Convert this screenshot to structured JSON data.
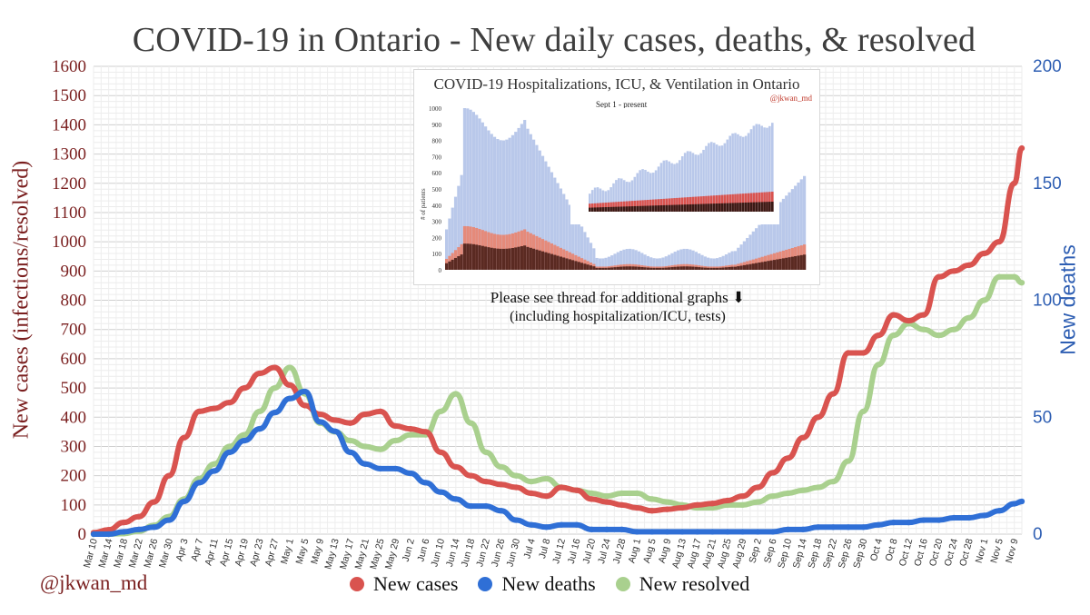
{
  "title": "COVID-19 in Ontario - New daily cases, deaths, & resolved",
  "handle": "@jkwan_md",
  "legend": [
    {
      "label": "New cases",
      "color": "#d9534f"
    },
    {
      "label": "New deaths",
      "color": "#2f6fd6"
    },
    {
      "label": "New resolved",
      "color": "#a9d08e"
    }
  ],
  "inset": {
    "title": "COVID-19 Hospitalizations, ICU, & Ventilation in Ontario",
    "handle": "@jkwan_md",
    "subtitle": "Sept 1 - present",
    "ylabel": "# of patients",
    "y_ticks": [
      "1000",
      "900",
      "800",
      "700",
      "600",
      "500",
      "400",
      "300",
      "200",
      "100",
      "0"
    ]
  },
  "note": {
    "line1": "Please see thread for additional graphs ⬇",
    "line2": "(including hospitalization/ICU, tests)"
  },
  "chart_data": {
    "type": "line",
    "title": "COVID-19 in Ontario - New daily cases, deaths, & resolved",
    "ylabel": "New cases (infections/resolved)",
    "y2label": "New deaths",
    "ylim": [
      0,
      1600
    ],
    "y2lim": [
      0,
      200
    ],
    "y_ticks": [
      0,
      100,
      200,
      300,
      400,
      500,
      600,
      700,
      800,
      900,
      1000,
      1100,
      1200,
      1300,
      1400,
      1500,
      1600
    ],
    "y2_ticks": [
      0,
      50,
      100,
      150,
      200
    ],
    "x_tick_labels": [
      "Mar 10",
      "Mar 14",
      "Mar 18",
      "Mar 22",
      "Mar 26",
      "Mar 30",
      "Apr 3",
      "Apr 7",
      "Apr 11",
      "Apr 15",
      "Apr 19",
      "Apr 23",
      "Apr 27",
      "May 1",
      "May 5",
      "May 9",
      "May 13",
      "May 17",
      "May 21",
      "May 25",
      "May 29",
      "Jun 2",
      "Jun 6",
      "Jun 10",
      "Jun 14",
      "Jun 18",
      "Jun 22",
      "Jun 26",
      "Jun 30",
      "Jul 4",
      "Jul 8",
      "Jul 12",
      "Jul 16",
      "Jul 20",
      "Jul 24",
      "Jul 28",
      "Aug 1",
      "Aug 5",
      "Aug 9",
      "Aug 13",
      "Aug 17",
      "Aug 21",
      "Aug 25",
      "Aug 29",
      "Sep 2",
      "Sep 6",
      "Sep 10",
      "Sep 14",
      "Sep 18",
      "Sep 22",
      "Sep 26",
      "Sep 30",
      "Oct 4",
      "Oct 8",
      "Oct 12",
      "Oct 16",
      "Oct 20",
      "Oct 24",
      "Oct 28",
      "Nov 1",
      "Nov 5",
      "Nov 9"
    ],
    "x_day_range": [
      0,
      246
    ],
    "grid": true,
    "legend_position": "bottom",
    "series": [
      {
        "name": "New cases",
        "axis": "left",
        "color": "#d9534f",
        "x": [
          0,
          4,
          8,
          12,
          16,
          20,
          24,
          28,
          32,
          36,
          40,
          44,
          48,
          52,
          56,
          60,
          64,
          68,
          72,
          76,
          80,
          84,
          88,
          92,
          96,
          100,
          104,
          108,
          112,
          116,
          120,
          124,
          128,
          132,
          136,
          140,
          144,
          148,
          152,
          156,
          160,
          164,
          168,
          172,
          176,
          180,
          184,
          188,
          192,
          196,
          200,
          204,
          208,
          212,
          216,
          220,
          224,
          228,
          232,
          236,
          240,
          244,
          246
        ],
        "y": [
          5,
          15,
          40,
          60,
          110,
          200,
          330,
          420,
          430,
          450,
          500,
          550,
          570,
          510,
          440,
          410,
          390,
          380,
          410,
          420,
          370,
          360,
          350,
          280,
          230,
          200,
          180,
          170,
          160,
          140,
          130,
          160,
          150,
          120,
          110,
          100,
          90,
          80,
          85,
          90,
          100,
          105,
          115,
          130,
          160,
          210,
          260,
          330,
          400,
          480,
          620,
          620,
          680,
          750,
          730,
          750,
          880,
          900,
          920,
          960,
          1000,
          1200,
          1320
        ]
      },
      {
        "name": "New deaths",
        "axis": "right",
        "color": "#2f6fd6",
        "x": [
          0,
          4,
          8,
          12,
          16,
          20,
          24,
          28,
          32,
          36,
          40,
          44,
          48,
          52,
          56,
          60,
          64,
          68,
          72,
          76,
          80,
          84,
          88,
          92,
          96,
          100,
          104,
          108,
          112,
          116,
          120,
          124,
          128,
          132,
          136,
          140,
          144,
          148,
          152,
          156,
          160,
          164,
          168,
          172,
          176,
          180,
          184,
          188,
          192,
          196,
          200,
          204,
          208,
          212,
          216,
          220,
          224,
          228,
          232,
          236,
          240,
          244,
          246
        ],
        "y": [
          0,
          0,
          1,
          2,
          3,
          6,
          14,
          22,
          27,
          35,
          40,
          45,
          52,
          58,
          61,
          48,
          44,
          35,
          30,
          28,
          28,
          26,
          22,
          18,
          15,
          12,
          12,
          10,
          6,
          4,
          3,
          4,
          4,
          2,
          2,
          2,
          1,
          1,
          1,
          1,
          1,
          1,
          1,
          1,
          1,
          1,
          2,
          2,
          3,
          3,
          3,
          3,
          4,
          5,
          5,
          6,
          6,
          7,
          7,
          8,
          10,
          13,
          14
        ]
      },
      {
        "name": "New resolved",
        "axis": "left",
        "color": "#a9d08e",
        "x": [
          0,
          4,
          8,
          12,
          16,
          20,
          24,
          28,
          32,
          36,
          40,
          44,
          48,
          52,
          56,
          60,
          64,
          68,
          72,
          76,
          80,
          84,
          88,
          92,
          96,
          100,
          104,
          108,
          112,
          116,
          120,
          124,
          128,
          132,
          136,
          140,
          144,
          148,
          152,
          156,
          160,
          164,
          168,
          172,
          176,
          180,
          184,
          188,
          192,
          196,
          200,
          204,
          208,
          212,
          216,
          220,
          224,
          228,
          232,
          236,
          240,
          244,
          246
        ],
        "y": [
          0,
          0,
          2,
          10,
          30,
          60,
          120,
          190,
          240,
          300,
          340,
          420,
          500,
          570,
          480,
          380,
          350,
          320,
          300,
          290,
          320,
          340,
          340,
          420,
          480,
          380,
          280,
          230,
          200,
          180,
          190,
          160,
          150,
          140,
          130,
          140,
          140,
          120,
          110,
          100,
          90,
          90,
          100,
          100,
          110,
          130,
          140,
          150,
          160,
          180,
          250,
          420,
          580,
          680,
          720,
          700,
          680,
          700,
          740,
          800,
          880,
          880,
          860
        ]
      }
    ]
  }
}
